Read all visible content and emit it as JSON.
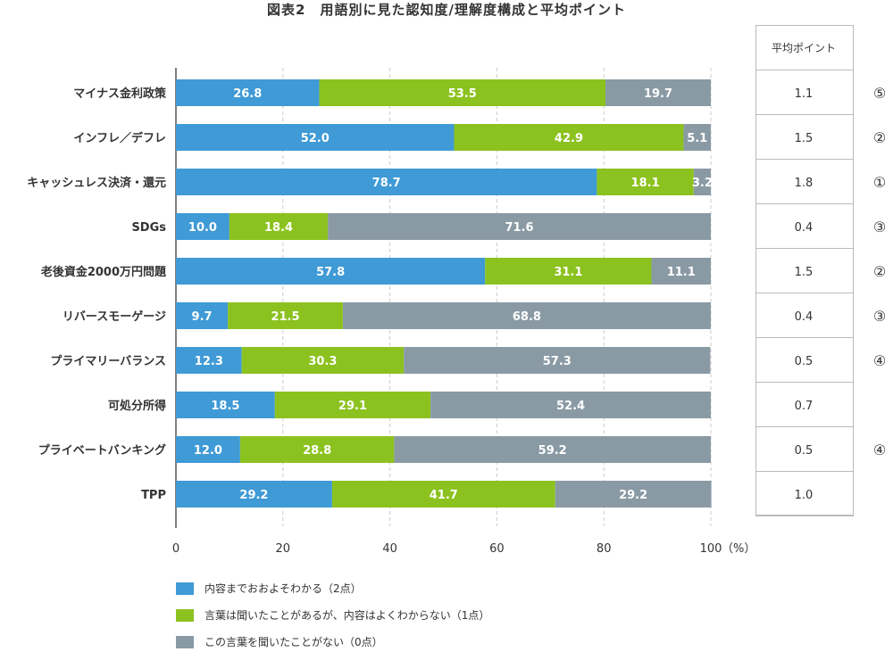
{
  "chart_data": {
    "type": "bar",
    "orientation": "horizontal",
    "stacked": true,
    "title": "図表2　用語別に見た認知度/理解度構成と平均ポイント",
    "categories": [
      "マイナス金利政策",
      "インフレ／デフレ",
      "キャッシュレス決済・還元",
      "SDGs",
      "老後資金2000万円問題",
      "リバースモーゲージ",
      "プライマリーバランス",
      "可処分所得",
      "プライベートバンキング",
      "TPP"
    ],
    "series": [
      {
        "name": "内容までおおよそわかる（2点）",
        "color": "#3f9ad6",
        "values": [
          26.8,
          52.0,
          78.7,
          10.0,
          57.8,
          9.7,
          12.3,
          18.5,
          12.0,
          29.2
        ]
      },
      {
        "name": "言葉は聞いたことがあるが、内容はよくわからない（1点）",
        "color": "#8cc21f",
        "values": [
          53.5,
          42.9,
          18.1,
          18.4,
          31.1,
          21.5,
          30.3,
          29.1,
          28.8,
          41.7
        ]
      },
      {
        "name": "この言葉を聞いたことがない（0点）",
        "color": "#8a9aa5",
        "values": [
          19.7,
          5.1,
          3.2,
          71.6,
          11.1,
          68.8,
          57.3,
          52.4,
          59.2,
          29.2
        ]
      }
    ],
    "xlim": [
      0,
      100
    ],
    "xticks": [
      "0",
      "20",
      "40",
      "60",
      "80",
      "100"
    ],
    "xunit": "（%）",
    "grid": true,
    "legend_position": "bottom-left",
    "table": {
      "header": "平均ポイント",
      "values": [
        "1.1",
        "1.5",
        "1.8",
        "0.4",
        "1.5",
        "0.4",
        "0.5",
        "0.7",
        "0.5",
        "1.0"
      ],
      "ranks": [
        "⑤",
        "②",
        "①",
        "③",
        "②",
        "③",
        "④",
        "",
        "④",
        ""
      ]
    }
  }
}
